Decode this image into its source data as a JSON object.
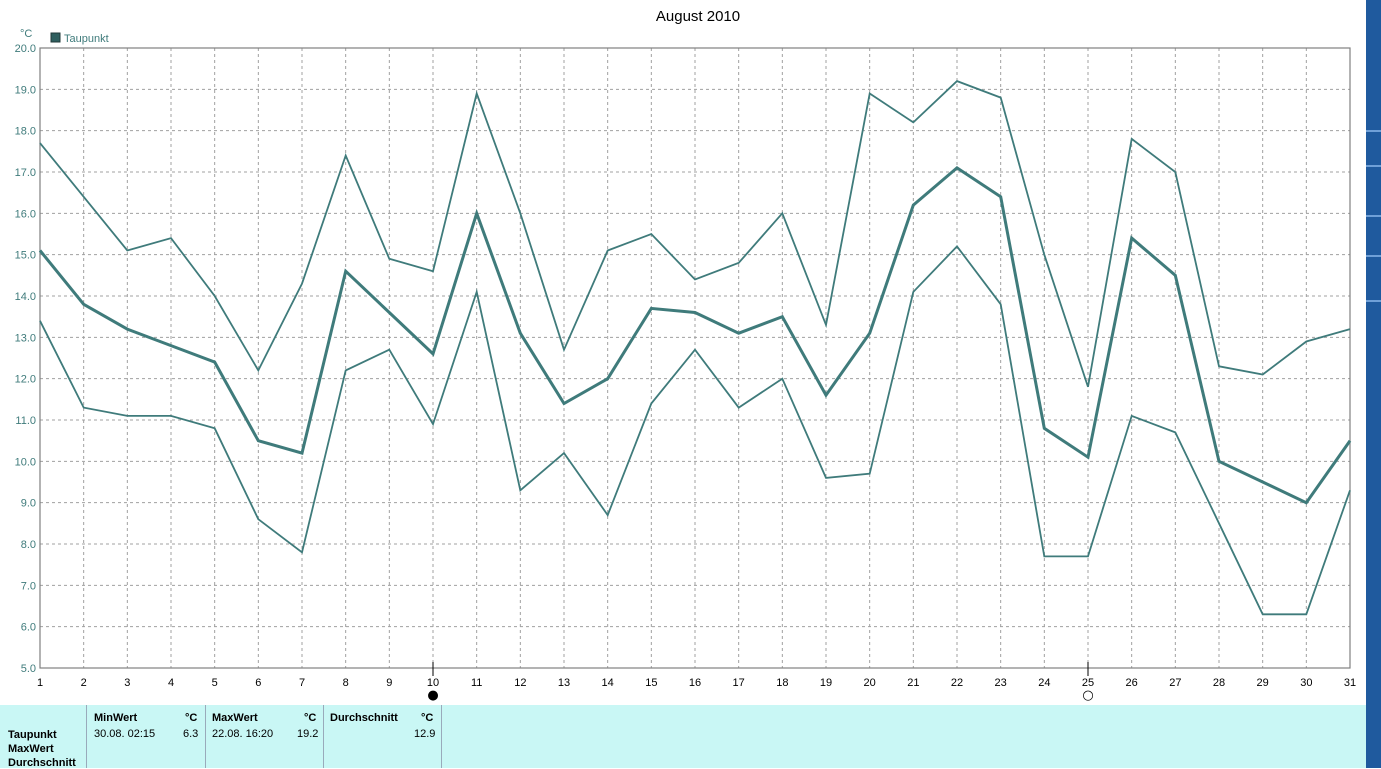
{
  "chart_data": {
    "type": "line",
    "title": "August 2010",
    "ylabel": "°C",
    "xlabel": "",
    "legend": {
      "label": "Taupunkt",
      "placement": "top-left"
    },
    "ylim": [
      5,
      20
    ],
    "yticks": [
      "5.0",
      "6.0",
      "7.0",
      "8.0",
      "9.0",
      "10.0",
      "11.0",
      "12.0",
      "13.0",
      "14.0",
      "15.0",
      "16.0",
      "17.0",
      "18.0",
      "19.0",
      "20.0"
    ],
    "x": [
      1,
      2,
      3,
      4,
      5,
      6,
      7,
      8,
      9,
      10,
      11,
      12,
      13,
      14,
      15,
      16,
      17,
      18,
      19,
      20,
      21,
      22,
      23,
      24,
      25,
      26,
      27,
      28,
      29,
      30,
      31
    ],
    "grid": true,
    "series": [
      {
        "role": "max",
        "values": [
          17.7,
          16.4,
          15.1,
          15.4,
          14.0,
          12.2,
          14.3,
          17.4,
          14.9,
          14.6,
          18.9,
          16.0,
          12.7,
          15.1,
          15.5,
          14.4,
          14.8,
          16.0,
          13.3,
          18.9,
          18.2,
          19.2,
          18.8,
          15.0,
          11.8,
          17.8,
          17.0,
          12.3,
          12.1,
          12.9,
          13.2
        ]
      },
      {
        "role": "mean",
        "values": [
          15.1,
          13.8,
          13.2,
          12.8,
          12.4,
          10.5,
          10.2,
          14.6,
          13.6,
          12.6,
          16.0,
          13.1,
          11.4,
          12.0,
          13.7,
          13.6,
          13.1,
          13.5,
          11.6,
          13.1,
          16.2,
          17.1,
          16.4,
          10.8,
          10.1,
          15.4,
          14.5,
          10.0,
          9.5,
          9.0,
          10.5
        ]
      },
      {
        "role": "min",
        "values": [
          13.4,
          11.3,
          11.1,
          11.1,
          10.8,
          8.6,
          7.8,
          12.2,
          12.7,
          10.9,
          14.1,
          9.3,
          10.2,
          8.7,
          11.4,
          12.7,
          11.3,
          12.0,
          9.6,
          9.7,
          14.1,
          15.2,
          13.8,
          7.7,
          7.7,
          11.1,
          10.7,
          8.5,
          6.3,
          6.3,
          9.3
        ]
      }
    ],
    "moon_markers": [
      {
        "day": 10,
        "symbol": "●"
      },
      {
        "day": 25,
        "symbol": "○"
      }
    ]
  },
  "colors": {
    "line": "#3f7b7b",
    "grid": "#a0a0a0",
    "axis_text": "#3f7b7b",
    "panel_bg": "#c9f7f5",
    "strip": "#1f5a9e"
  },
  "stats": {
    "row_labels": [
      "Taupunkt",
      "MaxWert",
      "Durchschnitt"
    ],
    "min_header": "MinWert",
    "min_unit": "°C",
    "min_date": "30.08.  02:15",
    "min_value": "6.3",
    "max_header": "MaxWert",
    "max_unit": "°C",
    "max_date": "22.08.  16:20",
    "max_value": "19.2",
    "avg_header": "Durchschnitt",
    "avg_unit": "°C",
    "avg_value": "12.9"
  }
}
